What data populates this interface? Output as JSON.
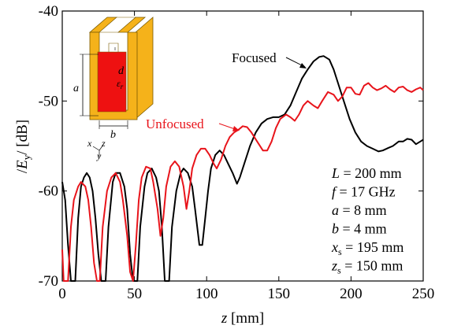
{
  "chart_data": {
    "type": "line",
    "xlabel_var": "z",
    "xlabel_unit": "[mm]",
    "ylabel_var": "E",
    "ylabel_sub": "y",
    "ylabel_unit": "[dB]",
    "xlim": [
      0,
      250
    ],
    "ylim": [
      -70,
      -40
    ],
    "xticks": [
      "0",
      "50",
      "100",
      "150",
      "200",
      "250"
    ],
    "yticks": [
      "-40",
      "-50",
      "-60",
      "-70"
    ],
    "grid": false,
    "series": [
      {
        "name": "Focused",
        "color": "#000000",
        "points": [
          [
            0,
            -59
          ],
          [
            2,
            -61
          ],
          [
            4,
            -66
          ],
          [
            6,
            -70
          ],
          [
            9,
            -70
          ],
          [
            11,
            -63
          ],
          [
            13,
            -59.5
          ],
          [
            15,
            -58.5
          ],
          [
            17,
            -58
          ],
          [
            19,
            -58.5
          ],
          [
            21,
            -60
          ],
          [
            23,
            -63
          ],
          [
            25,
            -67
          ],
          [
            27,
            -70
          ],
          [
            30,
            -70
          ],
          [
            32,
            -64
          ],
          [
            35,
            -59
          ],
          [
            37,
            -58
          ],
          [
            40,
            -58
          ],
          [
            43,
            -59.5
          ],
          [
            45,
            -62
          ],
          [
            47,
            -67
          ],
          [
            49,
            -70
          ],
          [
            52,
            -70
          ],
          [
            54,
            -64
          ],
          [
            57,
            -59.5
          ],
          [
            59,
            -58
          ],
          [
            62,
            -57.5
          ],
          [
            65,
            -58.5
          ],
          [
            67,
            -60
          ],
          [
            69,
            -64
          ],
          [
            71,
            -70
          ],
          [
            74,
            -70
          ],
          [
            76,
            -64
          ],
          [
            79,
            -60
          ],
          [
            82,
            -58
          ],
          [
            84,
            -57.5
          ],
          [
            87,
            -58
          ],
          [
            90,
            -59.5
          ],
          [
            92,
            -62
          ],
          [
            95,
            -66
          ],
          [
            97,
            -66
          ],
          [
            99,
            -63
          ],
          [
            101,
            -60
          ],
          [
            103,
            -57.5
          ],
          [
            106,
            -56
          ],
          [
            109,
            -55.5
          ],
          [
            112,
            -56
          ],
          [
            115,
            -57
          ],
          [
            118,
            -58
          ],
          [
            121,
            -59.2
          ],
          [
            123,
            -58.5
          ],
          [
            126,
            -57
          ],
          [
            130,
            -55
          ],
          [
            134,
            -53.5
          ],
          [
            138,
            -52.5
          ],
          [
            142,
            -52
          ],
          [
            146,
            -51.8
          ],
          [
            150,
            -51.8
          ],
          [
            154,
            -51.5
          ],
          [
            158,
            -50.5
          ],
          [
            162,
            -49
          ],
          [
            166,
            -47.5
          ],
          [
            170,
            -46.5
          ],
          [
            174,
            -45.6
          ],
          [
            178,
            -45.1
          ],
          [
            181,
            -45
          ],
          [
            185,
            -45.4
          ],
          [
            188,
            -46.5
          ],
          [
            191,
            -48
          ],
          [
            195,
            -50
          ],
          [
            199,
            -52
          ],
          [
            203,
            -53.5
          ],
          [
            207,
            -54.5
          ],
          [
            211,
            -55
          ],
          [
            215,
            -55.3
          ],
          [
            219,
            -55.6
          ],
          [
            222,
            -55.5
          ],
          [
            226,
            -55.2
          ],
          [
            229,
            -55
          ],
          [
            233,
            -54.5
          ],
          [
            236,
            -54.5
          ],
          [
            239,
            -54.2
          ],
          [
            242,
            -54.3
          ],
          [
            245,
            -54.8
          ],
          [
            248,
            -54.5
          ],
          [
            250,
            -54.3
          ]
        ]
      },
      {
        "name": "Unfocused",
        "color": "#e8141b",
        "points": [
          [
            0,
            -66.5
          ],
          [
            1,
            -70
          ],
          [
            4,
            -70
          ],
          [
            6,
            -64
          ],
          [
            8,
            -61
          ],
          [
            11,
            -59.5
          ],
          [
            13,
            -59
          ],
          [
            16,
            -59.5
          ],
          [
            18,
            -61
          ],
          [
            20,
            -64
          ],
          [
            22,
            -68
          ],
          [
            24,
            -70
          ],
          [
            26,
            -70
          ],
          [
            28,
            -64
          ],
          [
            31,
            -60
          ],
          [
            34,
            -58.5
          ],
          [
            37,
            -58
          ],
          [
            40,
            -59
          ],
          [
            42,
            -61
          ],
          [
            45,
            -65
          ],
          [
            47,
            -69
          ],
          [
            49,
            -70
          ],
          [
            51,
            -66
          ],
          [
            53,
            -61
          ],
          [
            55,
            -58.5
          ],
          [
            58,
            -57.3
          ],
          [
            61,
            -57.5
          ],
          [
            63,
            -59
          ],
          [
            66,
            -62
          ],
          [
            68,
            -65
          ],
          [
            70,
            -63
          ],
          [
            72,
            -59.5
          ],
          [
            75,
            -57.3
          ],
          [
            78,
            -56.7
          ],
          [
            81,
            -57.3
          ],
          [
            84,
            -59.5
          ],
          [
            86,
            -62
          ],
          [
            88,
            -60
          ],
          [
            90,
            -57.5
          ],
          [
            93,
            -56
          ],
          [
            96,
            -55.3
          ],
          [
            99,
            -55.3
          ],
          [
            102,
            -56
          ],
          [
            105,
            -57
          ],
          [
            107,
            -57.5
          ],
          [
            110,
            -56.5
          ],
          [
            113,
            -55
          ],
          [
            116,
            -54
          ],
          [
            119,
            -53.5
          ],
          [
            122,
            -53.2
          ],
          [
            125,
            -52.8
          ],
          [
            128,
            -52.9
          ],
          [
            131,
            -53.5
          ],
          [
            135,
            -54.5
          ],
          [
            139,
            -55.5
          ],
          [
            142,
            -55.5
          ],
          [
            145,
            -54.5
          ],
          [
            148,
            -53
          ],
          [
            151,
            -52
          ],
          [
            155,
            -51.5
          ],
          [
            158,
            -51.8
          ],
          [
            161,
            -52.2
          ],
          [
            164,
            -51.5
          ],
          [
            167,
            -50.5
          ],
          [
            170,
            -50
          ],
          [
            174,
            -50.5
          ],
          [
            177,
            -50.8
          ],
          [
            180,
            -50
          ],
          [
            184,
            -49
          ],
          [
            188,
            -49.3
          ],
          [
            191,
            -50
          ],
          [
            194,
            -49.5
          ],
          [
            197,
            -48.5
          ],
          [
            200,
            -48.5
          ],
          [
            203,
            -49.2
          ],
          [
            206,
            -49.3
          ],
          [
            209,
            -48.3
          ],
          [
            212,
            -48
          ],
          [
            215,
            -48.5
          ],
          [
            218,
            -48.8
          ],
          [
            221,
            -48.6
          ],
          [
            224,
            -48.3
          ],
          [
            227,
            -48.7
          ],
          [
            230,
            -49
          ],
          [
            233,
            -48.5
          ],
          [
            236,
            -48.4
          ],
          [
            239,
            -48.8
          ],
          [
            242,
            -49
          ],
          [
            245,
            -48.7
          ],
          [
            248,
            -48.5
          ],
          [
            250,
            -48.8
          ]
        ]
      }
    ],
    "annotations": {
      "focused_label": "Focused",
      "unfocused_label": "Unfocused"
    },
    "params": [
      {
        "var": "L",
        "sub": "",
        "value": " = 200 mm"
      },
      {
        "var": "f",
        "sub": "",
        "value": " = 17 GHz"
      },
      {
        "var": "a",
        "sub": "",
        "value": " = 8 mm"
      },
      {
        "var": "b",
        "sub": "",
        "value": " = 4 mm"
      },
      {
        "var": "x",
        "sub": "s",
        "value": " = 195 mm"
      },
      {
        "var": "z",
        "sub": "s",
        "value": " = 150 mm"
      }
    ],
    "inset": {
      "label_a": "a",
      "label_b": "b",
      "label_d": "d",
      "label_eps": "ε",
      "label_eps_sub": "r",
      "axis_x": "x",
      "axis_y": "y",
      "axis_z": "z",
      "colors": {
        "metal": "#f5b21a",
        "dielectric": "#ee1111",
        "edge": "#7a5a00"
      }
    }
  }
}
